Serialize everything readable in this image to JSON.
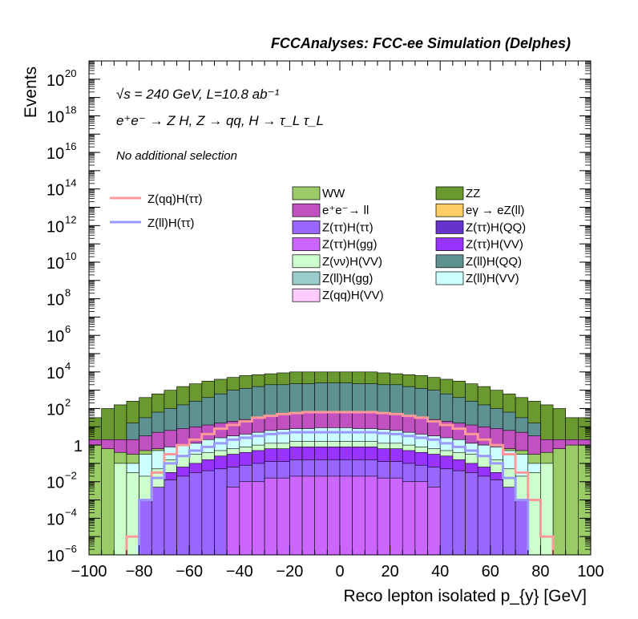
{
  "chart_data": {
    "type": "area",
    "subtype": "stacked-histogram-with-overlays",
    "header": "FCCAnalyses: FCC-ee Simulation (Delphes)",
    "ylabel": "Events",
    "xlabel": "Reco lepton isolated p_{y} [GeV]",
    "xlim": [
      -100,
      100
    ],
    "ylim": [
      1e-06,
      1e+21
    ],
    "yscale": "log",
    "xticks": [
      -100,
      -80,
      -60,
      -40,
      -20,
      0,
      20,
      40,
      60,
      80,
      100
    ],
    "yticks": [
      {
        "exp": -6,
        "label": "10",
        "sup": "−6"
      },
      {
        "exp": -4,
        "label": "10",
        "sup": "−4"
      },
      {
        "exp": -2,
        "label": "10",
        "sup": "−2"
      },
      {
        "exp": 0,
        "label": "1",
        "sup": ""
      },
      {
        "exp": 2,
        "label": "10",
        "sup": "2"
      },
      {
        "exp": 4,
        "label": "10",
        "sup": "4"
      },
      {
        "exp": 6,
        "label": "10",
        "sup": "6"
      },
      {
        "exp": 8,
        "label": "10",
        "sup": "8"
      },
      {
        "exp": 10,
        "label": "10",
        "sup": "10"
      },
      {
        "exp": 12,
        "label": "10",
        "sup": "12"
      },
      {
        "exp": 14,
        "label": "10",
        "sup": "14"
      },
      {
        "exp": 16,
        "label": "10",
        "sup": "16"
      },
      {
        "exp": 18,
        "label": "10",
        "sup": "18"
      },
      {
        "exp": 20,
        "label": "10",
        "sup": "20"
      }
    ],
    "annotations": {
      "energy_lumi": "√s = 240 GeV, L=10.8 ab⁻¹",
      "process": "e⁺e⁻ → Z H, Z → qq, H → τ_L τ_L",
      "selection": "No additional selection"
    },
    "legend_position": "top",
    "x_bin_edges_note": "40 bins of 5 GeV from -100 to 100",
    "bin_centers": [
      -97.5,
      -92.5,
      -87.5,
      -82.5,
      -77.5,
      -72.5,
      -67.5,
      -62.5,
      -57.5,
      -52.5,
      -47.5,
      -42.5,
      -37.5,
      -32.5,
      -27.5,
      -22.5,
      -17.5,
      -12.5,
      -7.5,
      -2.5,
      2.5,
      7.5,
      12.5,
      17.5,
      22.5,
      27.5,
      32.5,
      37.5,
      42.5,
      47.5,
      52.5,
      57.5,
      62.5,
      67.5,
      72.5,
      77.5,
      82.5,
      87.5,
      92.5,
      97.5
    ],
    "stack_log10_tops": [
      {
        "name": "ZZ",
        "color": "#6a992f",
        "log10_top": [
          1.5,
          2.0,
          2.2,
          2.4,
          2.6,
          2.8,
          3.0,
          3.2,
          3.35,
          3.5,
          3.6,
          3.7,
          3.8,
          3.85,
          3.9,
          3.95,
          4.0,
          4.0,
          4.0,
          4.0,
          4.0,
          4.0,
          4.0,
          3.95,
          3.9,
          3.85,
          3.8,
          3.7,
          3.6,
          3.5,
          3.35,
          3.2,
          3.0,
          2.8,
          2.6,
          2.4,
          2.2,
          2.0,
          1.5,
          1.5
        ]
      },
      {
        "name": "Z(ll)H(QQ)",
        "color": "#5e9292",
        "log10_top": [
          null,
          null,
          null,
          1.2,
          1.5,
          1.8,
          2.0,
          2.2,
          2.4,
          2.6,
          2.8,
          3.0,
          3.1,
          3.2,
          3.3,
          3.3,
          3.35,
          3.35,
          3.4,
          3.4,
          3.4,
          3.35,
          3.35,
          3.3,
          3.3,
          3.2,
          3.1,
          3.0,
          2.8,
          2.6,
          2.4,
          2.2,
          2.0,
          1.8,
          1.5,
          1.2,
          null,
          null,
          null,
          null
        ]
      },
      {
        "name": "e⁺e⁻ → ll",
        "color": "#c151c1",
        "log10_top": [
          0.3,
          0.3,
          0.3,
          0.3,
          0.5,
          0.7,
          0.8,
          0.9,
          1.0,
          1.1,
          1.2,
          1.3,
          1.4,
          1.5,
          1.6,
          1.7,
          1.7,
          1.8,
          1.8,
          1.8,
          1.8,
          1.8,
          1.8,
          1.7,
          1.7,
          1.6,
          1.5,
          1.4,
          1.3,
          1.2,
          1.1,
          1.0,
          0.9,
          0.8,
          0.7,
          0.5,
          0.3,
          0.3,
          0.3,
          0.3
        ]
      },
      {
        "name": "WW",
        "color": "#99cc66",
        "log10_top": [
          0.0,
          -0.2,
          -0.4,
          -0.5,
          -0.3,
          -0.2,
          -0.1,
          0.0,
          0.1,
          0.2,
          0.3,
          0.4,
          0.5,
          0.6,
          0.7,
          0.7,
          0.8,
          0.8,
          0.8,
          0.8,
          0.8,
          0.8,
          0.8,
          0.7,
          0.7,
          0.6,
          0.5,
          0.4,
          0.3,
          0.2,
          0.1,
          0.0,
          -0.1,
          -0.2,
          -0.3,
          -0.5,
          -0.4,
          -0.2,
          0.0,
          0.0
        ]
      },
      {
        "name": "Z(ll)H(VV)",
        "color": "#ccffff",
        "log10_top": [
          null,
          null,
          null,
          -1.0,
          -0.5,
          -0.3,
          -0.1,
          0.0,
          0.1,
          0.3,
          0.4,
          0.5,
          0.6,
          0.7,
          0.8,
          0.85,
          0.9,
          0.9,
          0.95,
          0.95,
          0.95,
          0.9,
          0.9,
          0.85,
          0.8,
          0.7,
          0.6,
          0.5,
          0.4,
          0.3,
          0.1,
          0.0,
          -0.1,
          -0.3,
          -0.5,
          -1.0,
          null,
          null,
          null,
          null
        ]
      },
      {
        "name": "Z(νν)H(VV)",
        "color": "#ccffcc",
        "log10_top": [
          null,
          null,
          -1.0,
          -1.5,
          -1.7,
          -1.3,
          -0.8,
          -0.6,
          -0.5,
          -0.4,
          -0.3,
          -0.2,
          -0.1,
          0.0,
          0.1,
          0.1,
          0.2,
          0.2,
          0.2,
          0.2,
          0.2,
          0.2,
          0.2,
          0.1,
          0.1,
          0.0,
          -0.1,
          -0.2,
          -0.3,
          -0.4,
          -0.5,
          -0.6,
          -0.8,
          -1.3,
          -1.7,
          -1.5,
          -1.0,
          null,
          null,
          null
        ]
      },
      {
        "name": "Z(ττ)H(VV)",
        "color": "#9933ff",
        "log10_top": [
          null,
          null,
          null,
          null,
          -3.5,
          -2.5,
          -1.5,
          -1.2,
          -1.0,
          -0.8,
          -0.6,
          -0.5,
          -0.4,
          -0.3,
          -0.2,
          -0.2,
          -0.1,
          -0.1,
          -0.1,
          -0.1,
          -0.1,
          -0.1,
          -0.1,
          -0.2,
          -0.2,
          -0.3,
          -0.4,
          -0.5,
          -0.6,
          -0.8,
          -1.0,
          -1.2,
          -1.5,
          -2.5,
          -3.5,
          null,
          null,
          null,
          null,
          null
        ]
      },
      {
        "name": "Z(ττ)H(ττ)",
        "color": "#9966ff",
        "log10_top": [
          null,
          null,
          null,
          null,
          -3.0,
          -2.3,
          -1.9,
          -1.7,
          -1.5,
          -1.4,
          -1.3,
          -1.2,
          -1.1,
          -1.0,
          -0.9,
          -0.9,
          -0.8,
          -0.8,
          -0.8,
          -0.8,
          -0.8,
          -0.8,
          -0.8,
          -0.9,
          -0.9,
          -1.0,
          -1.1,
          -1.2,
          -1.3,
          -1.4,
          -1.5,
          -1.7,
          -1.9,
          -2.3,
          -3.0,
          null,
          null,
          null,
          null,
          null
        ]
      },
      {
        "name": "Z(ττ)H(gg)",
        "color": "#cc66ff",
        "log10_top": [
          null,
          null,
          null,
          null,
          null,
          null,
          null,
          null,
          null,
          null,
          null,
          -2.3,
          -2.0,
          -2.0,
          -1.8,
          -1.8,
          -1.7,
          -1.7,
          -1.7,
          -1.7,
          -1.7,
          -1.7,
          -1.7,
          -1.8,
          -1.8,
          -2.0,
          -2.0,
          -2.3,
          null,
          null,
          null,
          null,
          null,
          null,
          null,
          null,
          null,
          null,
          null,
          null
        ]
      }
    ],
    "overlays": [
      {
        "name": "Z(qq)H(ττ)",
        "color": "#ff9999",
        "log10_values": [
          null,
          null,
          null,
          -5.0,
          -3.0,
          -1.5,
          -0.5,
          0.0,
          0.3,
          0.6,
          0.9,
          1.1,
          1.3,
          1.5,
          1.6,
          1.7,
          1.75,
          1.8,
          1.8,
          1.8,
          1.8,
          1.8,
          1.8,
          1.75,
          1.7,
          1.6,
          1.5,
          1.3,
          1.1,
          0.9,
          0.6,
          0.3,
          0.0,
          -0.5,
          -1.5,
          -3.0,
          -5.0,
          null,
          null,
          null
        ]
      },
      {
        "name": "Z(ll)H(ττ)",
        "color": "#9999ff",
        "log10_values": [
          null,
          null,
          null,
          null,
          -3.0,
          -1.8,
          -1.0,
          -0.6,
          -0.3,
          -0.1,
          0.1,
          0.3,
          0.4,
          0.5,
          0.6,
          0.65,
          0.7,
          0.7,
          0.7,
          0.7,
          0.7,
          0.7,
          0.7,
          0.65,
          0.6,
          0.5,
          0.4,
          0.3,
          0.1,
          -0.1,
          -0.3,
          -0.6,
          -1.0,
          -1.8,
          -3.0,
          null,
          null,
          null,
          null,
          null
        ]
      }
    ],
    "legend_left": [
      {
        "label": "Z(qq)H(ττ)",
        "color": "#ff9999",
        "kind": "line"
      },
      {
        "label": "Z(ll)H(ττ)",
        "color": "#9999ff",
        "kind": "line"
      }
    ],
    "legend_col1": [
      {
        "label": "WW",
        "color": "#99cc66"
      },
      {
        "label": "e⁺e⁻→ ll",
        "color": "#c151c1"
      },
      {
        "label": "Z(ττ)H(ττ)",
        "color": "#9966ff"
      },
      {
        "label": "Z(ττ)H(gg)",
        "color": "#cc66ff"
      },
      {
        "label": "Z(νν)H(VV)",
        "color": "#ccffcc"
      },
      {
        "label": "Z(ll)H(gg)",
        "color": "#99cccc"
      },
      {
        "label": "Z(qq)H(VV)",
        "color": "#ffccff"
      }
    ],
    "legend_col2": [
      {
        "label": "ZZ",
        "color": "#6a992f"
      },
      {
        "label": "eγ → eZ(ll)",
        "color": "#ffcc66"
      },
      {
        "label": "Z(ττ)H(QQ)",
        "color": "#6633cc"
      },
      {
        "label": "Z(ττ)H(VV)",
        "color": "#9933ff"
      },
      {
        "label": "Z(ll)H(QQ)",
        "color": "#5e9292"
      },
      {
        "label": "Z(ll)H(VV)",
        "color": "#ccffff"
      }
    ]
  }
}
